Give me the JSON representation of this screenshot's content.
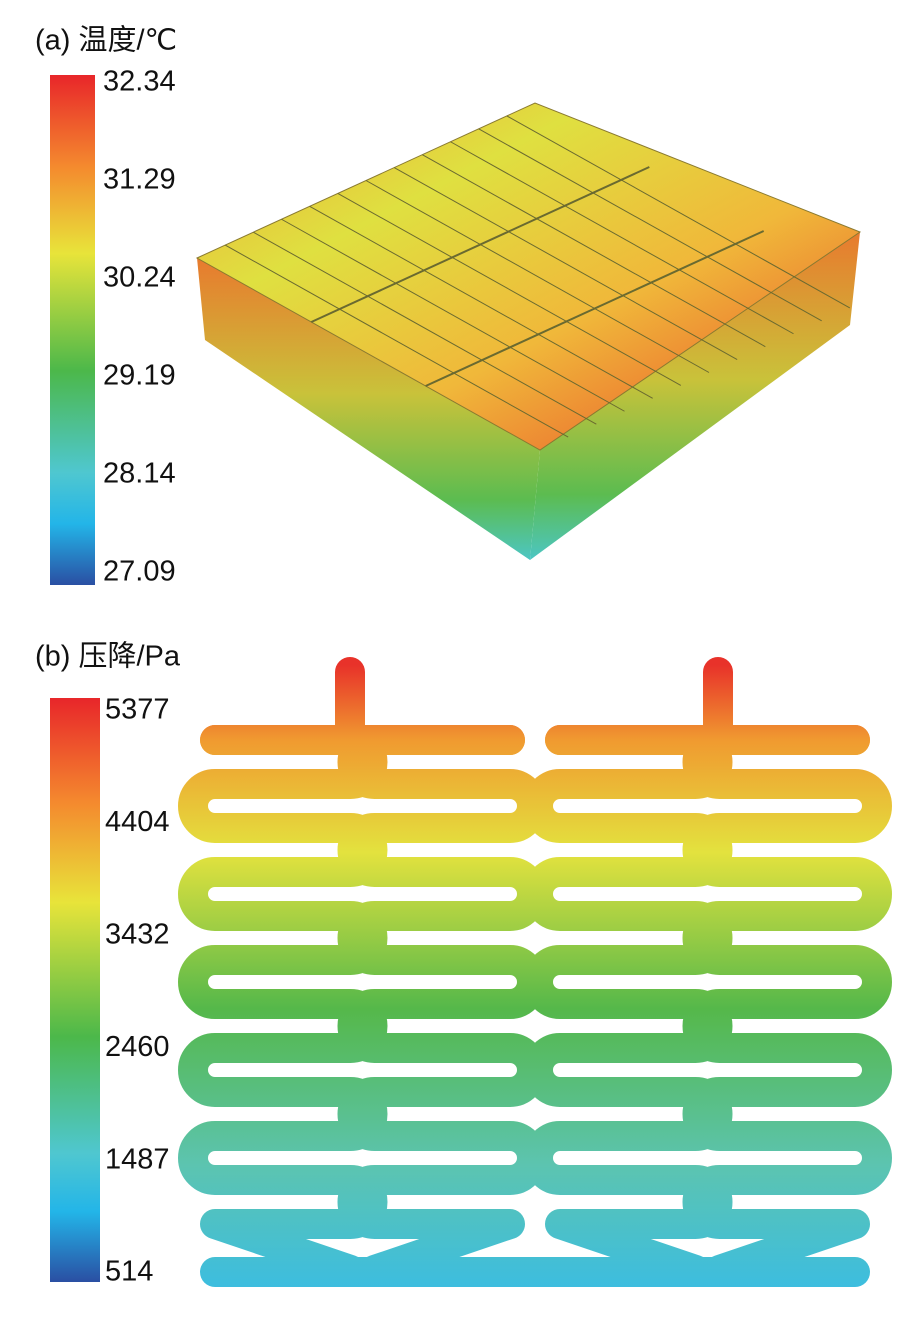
{
  "panels": [
    {
      "label": "(a) 温度/℃",
      "colorbar": {
        "ticks": [
          "32.34",
          "31.29",
          "30.24",
          "29.19",
          "28.14",
          "27.09"
        ]
      }
    },
    {
      "label": "(b) 压降/Pa",
      "colorbar": {
        "ticks": [
          "5377",
          "4404",
          "3432",
          "2460",
          "1487",
          "514"
        ]
      }
    }
  ]
}
